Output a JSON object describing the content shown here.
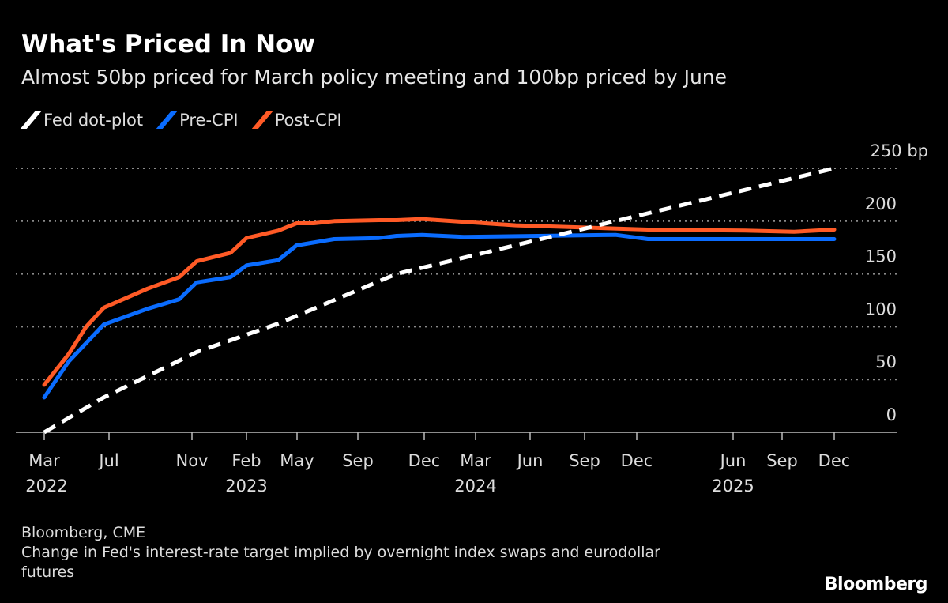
{
  "title": "What's Priced In Now",
  "subtitle": "Almost 50bp priced for March policy meeting and 100bp priced by June",
  "source": "Bloomberg, CME",
  "note": "Change in Fed's interest-rate target implied by overnight index swaps and eurodollar futures",
  "logo": "Bloomberg",
  "chart_data": {
    "type": "line",
    "ylim": [
      0,
      250
    ],
    "yticks": [
      0,
      50,
      100,
      150,
      200,
      250
    ],
    "ytick_labels": [
      "0",
      "50",
      "100",
      "150",
      "200",
      "250 bp"
    ],
    "yunit": "bp",
    "grid": true,
    "legend_placement": "top-left",
    "xticks": [
      {
        "date": "2022-03-01",
        "label": "Mar",
        "year": "2022"
      },
      {
        "date": "2022-07-01",
        "label": "Jul",
        "year": ""
      },
      {
        "date": "2022-11-01",
        "label": "Nov",
        "year": ""
      },
      {
        "date": "2023-02-01",
        "label": "Feb",
        "year": "2023"
      },
      {
        "date": "2023-05-01",
        "label": "May",
        "year": ""
      },
      {
        "date": "2023-09-01",
        "label": "Sep",
        "year": ""
      },
      {
        "date": "2023-12-01",
        "label": "Dec",
        "year": ""
      },
      {
        "date": "2024-03-01",
        "label": "Mar",
        "year": "2024"
      },
      {
        "date": "2024-06-01",
        "label": "Jun",
        "year": ""
      },
      {
        "date": "2024-09-01",
        "label": "Sep",
        "year": ""
      },
      {
        "date": "2024-12-01",
        "label": "Dec",
        "year": ""
      },
      {
        "date": "2025-06-01",
        "label": "Jun",
        "year": "2025"
      },
      {
        "date": "2025-09-01",
        "label": "Sep",
        "year": ""
      },
      {
        "date": "2025-12-01",
        "label": "Dec",
        "year": ""
      }
    ],
    "series": [
      {
        "name": "Fed dot-plot",
        "color": "#ffffff",
        "style": "dashed",
        "x": [
          "2022-03-01",
          "2022-06-21",
          "2022-11-09",
          "2023-03-29",
          "2023-10-24",
          "2025-12-01"
        ],
        "values": [
          0,
          33,
          76,
          103,
          150,
          250
        ]
      },
      {
        "name": "Pre-CPI",
        "color": "#0a6cff",
        "style": "solid",
        "x": [
          "2022-03-01",
          "2022-04-16",
          "2022-06-21",
          "2022-08-27",
          "2022-10-13",
          "2022-11-09",
          "2023-01-05",
          "2023-02-01",
          "2023-03-29",
          "2023-04-30",
          "2023-07-15",
          "2023-09-30",
          "2023-10-24",
          "2023-11-28",
          "2024-02-09",
          "2024-10-25",
          "2024-12-22",
          "2025-12-01"
        ],
        "values": [
          33,
          67,
          102,
          117,
          126,
          142,
          147,
          158,
          163,
          177,
          183,
          184,
          186,
          187,
          185,
          187,
          183,
          183
        ]
      },
      {
        "name": "Post-CPI",
        "color": "#ff5a26",
        "style": "solid",
        "x": [
          "2022-03-01",
          "2022-04-16",
          "2022-05-19",
          "2022-06-21",
          "2022-08-27",
          "2022-10-13",
          "2022-11-09",
          "2023-01-05",
          "2023-02-01",
          "2023-03-29",
          "2023-04-30",
          "2023-06-04",
          "2023-07-15",
          "2023-09-30",
          "2023-10-24",
          "2023-11-28",
          "2024-05-08",
          "2024-12-22",
          "2025-06-23",
          "2025-09-22",
          "2025-12-01"
        ],
        "values": [
          45,
          74,
          100,
          118,
          136,
          147,
          162,
          170,
          184,
          191,
          198,
          198,
          200,
          201,
          201,
          202,
          196,
          192,
          191,
          190,
          192
        ]
      }
    ]
  }
}
